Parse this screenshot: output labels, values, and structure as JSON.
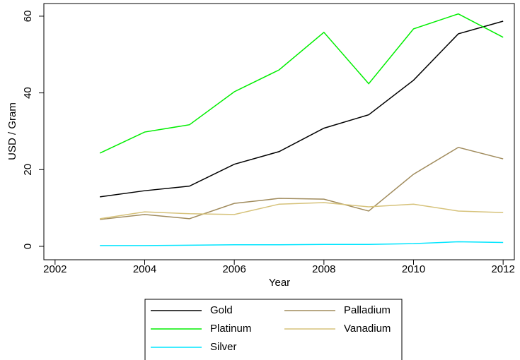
{
  "chart_data": {
    "type": "line",
    "x": [
      2003,
      2004,
      2005,
      2006,
      2007,
      2008,
      2009,
      2010,
      2011,
      2012
    ],
    "series": [
      {
        "name": "Gold",
        "color": "#000000",
        "values": [
          12.9,
          14.5,
          15.7,
          21.4,
          24.7,
          30.8,
          34.3,
          43.3,
          55.4,
          58.7
        ]
      },
      {
        "name": "Palladium",
        "color": "#a08b5c",
        "values": [
          7.0,
          8.3,
          7.2,
          11.2,
          12.5,
          12.3,
          9.2,
          18.8,
          25.8,
          22.8
        ]
      },
      {
        "name": "Platinum",
        "color": "#00ee00",
        "values": [
          24.3,
          29.8,
          31.7,
          40.3,
          46.0,
          55.8,
          42.4,
          56.7,
          60.6,
          54.5
        ]
      },
      {
        "name": "Vanadium",
        "color": "#d6c27a",
        "values": [
          7.2,
          9.0,
          8.5,
          8.3,
          11.0,
          11.4,
          10.3,
          11.0,
          9.2,
          8.8
        ]
      },
      {
        "name": "Silver",
        "color": "#00e5ff",
        "values": [
          0.2,
          0.2,
          0.3,
          0.4,
          0.4,
          0.5,
          0.5,
          0.7,
          1.2,
          1.0
        ]
      }
    ],
    "xlabel": "Year",
    "ylabel": "USD / Gram",
    "xlim": [
      2001.75,
      2012.25
    ],
    "xticks": [
      2002,
      2004,
      2006,
      2008,
      2010,
      2012
    ],
    "ylim": [
      -3.5,
      63.3
    ],
    "yticks": [
      0,
      20,
      40,
      60
    ],
    "grid": false,
    "legend": "bottom"
  }
}
